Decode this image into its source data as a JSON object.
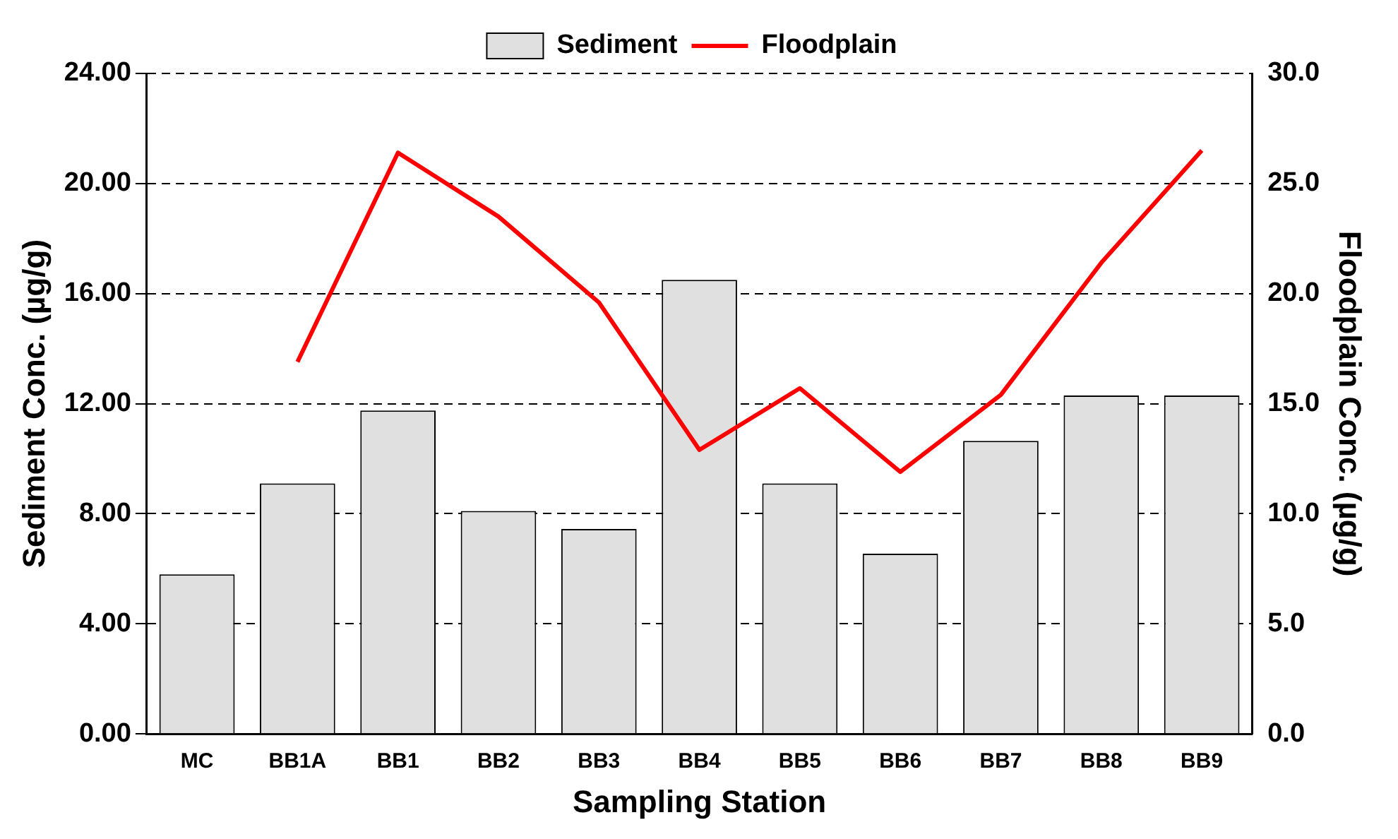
{
  "chart_data": {
    "type": "bar",
    "xlabel": "Sampling Station",
    "ylabel": "Sediment Conc. (µg/g)",
    "y2label": "Floodplain Conc. (µg/g)",
    "categories": [
      "MC",
      "BB1A",
      "BB1",
      "BB2",
      "BB3",
      "BB4",
      "BB5",
      "BB6",
      "BB7",
      "BB8",
      "BB9"
    ],
    "series": [
      {
        "name": "Sediment",
        "color": "#e0e0e0",
        "values": [
          5.8,
          9.1,
          11.75,
          8.1,
          7.45,
          16.5,
          9.1,
          6.55,
          10.65,
          12.3,
          12.3
        ]
      },
      {
        "name": "Floodplain",
        "type": "line",
        "axis": "y2",
        "color": "#ff0000",
        "values": [
          null,
          16.9,
          26.4,
          23.5,
          19.6,
          12.9,
          15.7,
          11.9,
          15.4,
          21.4,
          26.5
        ]
      }
    ],
    "ylim": [
      0,
      24
    ],
    "yticks": [
      {
        "value": 0,
        "label": "0.00"
      },
      {
        "value": 4,
        "label": "4.00"
      },
      {
        "value": 8,
        "label": "8.00"
      },
      {
        "value": 12,
        "label": "12.00"
      },
      {
        "value": 16,
        "label": "16.00"
      },
      {
        "value": 20,
        "label": "20.00"
      },
      {
        "value": 24,
        "label": "24.00"
      }
    ],
    "y2lim": [
      0,
      30
    ],
    "y2ticks": [
      {
        "value": 0,
        "label": "0.0"
      },
      {
        "value": 5,
        "label": "5.0"
      },
      {
        "value": 10,
        "label": "10.0"
      },
      {
        "value": 15,
        "label": "15.0"
      },
      {
        "value": 20,
        "label": "20.0"
      },
      {
        "value": 25,
        "label": "25.0"
      },
      {
        "value": 30,
        "label": "30.0"
      }
    ],
    "grid": "y",
    "legend": "top",
    "marker": "none"
  }
}
